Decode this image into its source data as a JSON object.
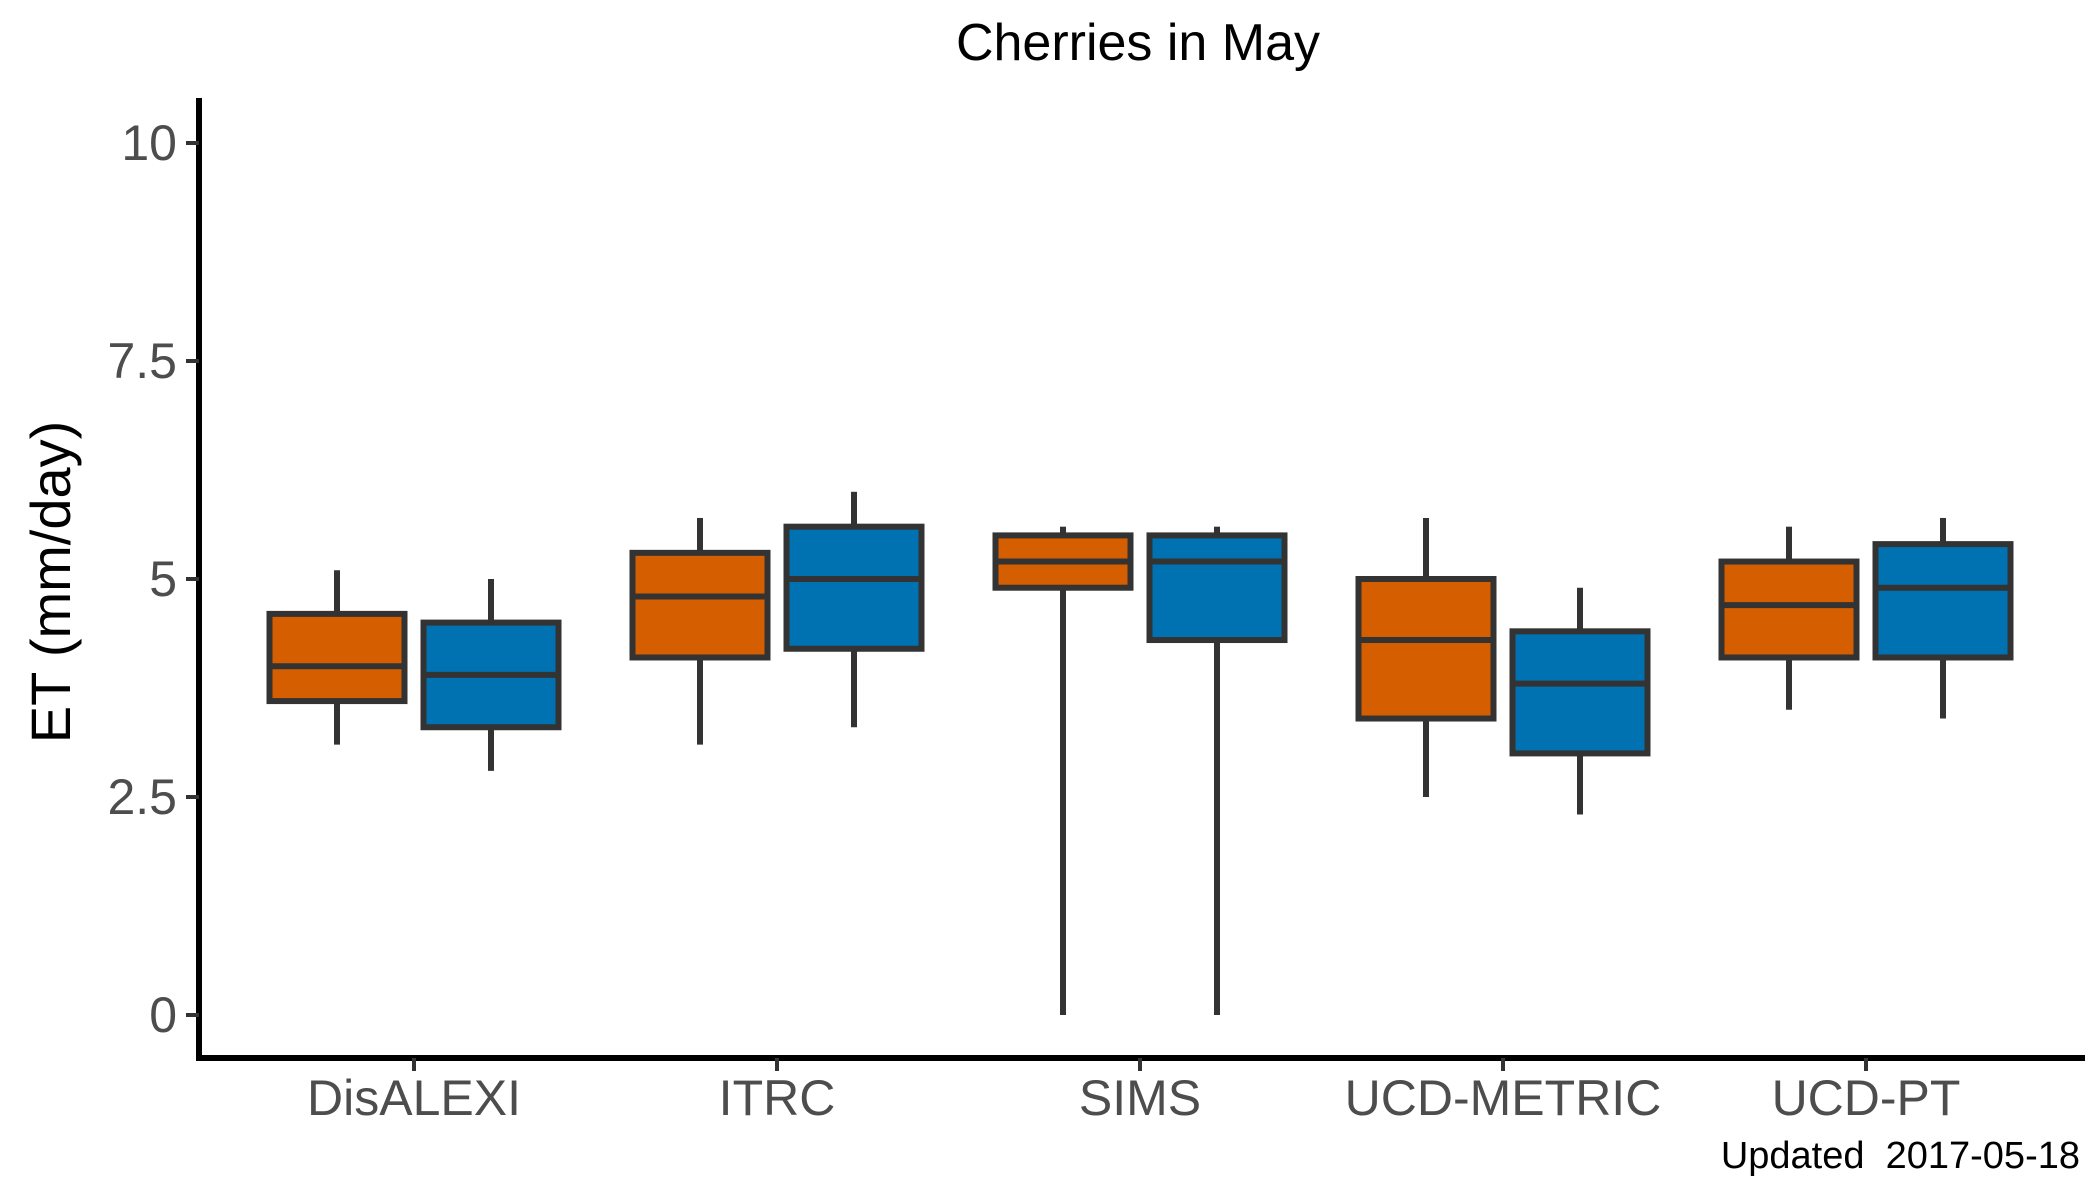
{
  "chart_data": {
    "type": "boxplot",
    "title": "Cherries in May",
    "xlabel": "",
    "ylabel": "ET (mm/day)",
    "caption": "Updated  2017-05-18",
    "ylim": [
      -0.5,
      10.5
    ],
    "yticks": [
      0,
      2.5,
      5,
      7.5,
      10
    ],
    "ytick_labels": [
      "0",
      "2.5",
      "5",
      "7.5",
      "10"
    ],
    "grid": false,
    "legend": "none",
    "categories": [
      "DisALEXI",
      "ITRC",
      "SIMS",
      "UCD-METRIC",
      "UCD-PT"
    ],
    "series": [
      {
        "color": "#D55E00",
        "boxes": [
          {
            "min": 3.1,
            "q1": 3.6,
            "median": 4.0,
            "q3": 4.6,
            "max": 5.1
          },
          {
            "min": 3.1,
            "q1": 4.1,
            "median": 4.8,
            "q3": 5.3,
            "max": 5.7
          },
          {
            "min": 0.0,
            "q1": 4.9,
            "median": 5.2,
            "q3": 5.5,
            "max": 5.6
          },
          {
            "min": 2.5,
            "q1": 3.4,
            "median": 4.3,
            "q3": 5.0,
            "max": 5.7
          },
          {
            "min": 3.5,
            "q1": 4.1,
            "median": 4.7,
            "q3": 5.2,
            "max": 5.6
          }
        ]
      },
      {
        "color": "#0072B2",
        "boxes": [
          {
            "min": 2.8,
            "q1": 3.3,
            "median": 3.9,
            "q3": 4.5,
            "max": 5.0
          },
          {
            "min": 3.3,
            "q1": 4.2,
            "median": 5.0,
            "q3": 5.6,
            "max": 6.0
          },
          {
            "min": 0.0,
            "q1": 4.3,
            "median": 5.2,
            "q3": 5.5,
            "max": 5.6
          },
          {
            "min": 2.3,
            "q1": 3.0,
            "median": 3.8,
            "q3": 4.4,
            "max": 4.9
          },
          {
            "min": 3.4,
            "q1": 4.1,
            "median": 4.9,
            "q3": 5.4,
            "max": 5.7
          }
        ]
      }
    ]
  }
}
